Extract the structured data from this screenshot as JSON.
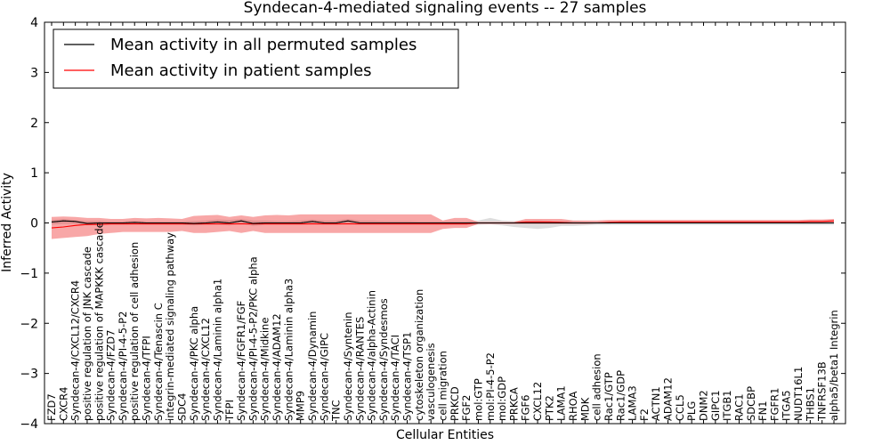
{
  "chart_data": {
    "type": "line",
    "title": "Syndecan-4-mediated signaling events -- 27 samples",
    "xlabel": "Cellular Entities",
    "ylabel": "Inferred Activity",
    "ylim": [
      -4,
      4
    ],
    "yticks": [
      -4,
      -3,
      -2,
      -1,
      0,
      1,
      2,
      3,
      4
    ],
    "ytick_labels": [
      "−4",
      "−3",
      "−2",
      "−1",
      "0",
      "1",
      "2",
      "3",
      "4"
    ],
    "grid": false,
    "legend_position": "top-left",
    "categories": [
      "FZD7",
      "CXCR4",
      "Syndecan-4/CXCL12/CXCR4",
      "positive regulation of JNK cascade",
      "positive regulation of MAPKKK cascade",
      "Syndecan-4/FZD7",
      "Syndecan-4/PI-4-5-P2",
      "positive regulation of cell adhesion",
      "Syndecan-4/TFPI",
      "Syndecan-4/Tenascin C",
      "integrin-mediated signaling pathway",
      "SDC4",
      "Syndecan-4/PKC alpha",
      "Syndecan-4/CXCL12",
      "Syndecan-4/Laminin alpha1",
      "TFPI",
      "Syndecan-4/FGFR1/FGF",
      "Syndecan-4/PI-4-5-P2/PKC alpha",
      "Syndecan-4/Midkine",
      "Syndecan-4/ADAM12",
      "Syndecan-4/Laminin alpha3",
      "MMP9",
      "Syndecan-4/Dynamin",
      "Syndecan-4/GIPC",
      "TNC",
      "Syndecan-4/Syntenin",
      "Syndecan-4/RANTES",
      "Syndecan-4/alpha-Actinin",
      "Syndecan-4/Syndesmos",
      "Syndecan-4/TACI",
      "Syndecan-4/TSP1",
      "cytoskeleton organization",
      "vasculogenesis",
      "cell migration",
      "PRKCD",
      "FGF2",
      "mol:GTP",
      "mol:PI-4-5-P2",
      "mol:GDP",
      "PRKCA",
      "FGF6",
      "CXCL12",
      "PTK2",
      "LAMA1",
      "RHOA",
      "MDK",
      "cell adhesion",
      "Rac1/GTP",
      "Rac1/GDP",
      "LAMA3",
      "F2",
      "ACTN1",
      "ADAM12",
      "CCL5",
      "PLG",
      "DNM2",
      "GIPC1",
      "ITGB1",
      "RAC1",
      "SDCBP",
      "FN1",
      "FGFR1",
      "ITGA5",
      "NUDT16L1",
      "THBS1",
      "TNFRSF13B",
      "alpha5/beta1 Integrin"
    ],
    "series": [
      {
        "name": "Mean activity in all permuted samples",
        "color": "#000000",
        "values": [
          0.02,
          0.04,
          0.03,
          -0.01,
          0.0,
          0.0,
          0.0,
          0.01,
          0.0,
          0.0,
          0.0,
          0.0,
          -0.01,
          0.0,
          0.02,
          0.0,
          0.04,
          -0.01,
          0.0,
          0.0,
          0.0,
          0.0,
          0.03,
          0.0,
          0.0,
          0.04,
          0.0,
          0.0,
          0.0,
          0.0,
          0.0,
          0.0,
          0.0,
          0.0,
          0.0,
          0.0,
          0.0,
          0.0,
          0.0,
          0.0,
          0.0,
          0.0,
          0.0,
          0.0,
          0.0,
          0.0,
          0.0,
          0.0,
          0.0,
          0.0,
          0.0,
          0.0,
          0.0,
          0.0,
          0.0,
          0.0,
          0.0,
          0.0,
          0.0,
          0.0,
          0.0,
          0.0,
          0.0,
          0.0,
          0.0,
          0.0,
          0.0
        ],
        "band_upper": [
          0.06,
          0.08,
          0.06,
          0.04,
          0.04,
          0.03,
          0.03,
          0.04,
          0.03,
          0.03,
          0.03,
          0.03,
          0.04,
          0.05,
          0.07,
          0.06,
          0.08,
          0.05,
          0.05,
          0.04,
          0.04,
          0.05,
          0.07,
          0.05,
          0.05,
          0.08,
          0.05,
          0.05,
          0.04,
          0.04,
          0.04,
          0.03,
          0.03,
          0.03,
          0.03,
          0.03,
          0.05,
          0.1,
          0.05,
          0.04,
          0.04,
          0.05,
          0.04,
          0.04,
          0.04,
          0.03,
          0.03,
          0.03,
          0.03,
          0.03,
          0.03,
          0.03,
          0.03,
          0.03,
          0.03,
          0.03,
          0.03,
          0.03,
          0.03,
          0.03,
          0.03,
          0.03,
          0.03,
          0.03,
          0.03,
          0.03,
          0.03
        ],
        "band_lower": [
          -0.03,
          -0.02,
          -0.02,
          -0.05,
          -0.04,
          -0.04,
          -0.04,
          -0.03,
          -0.04,
          -0.04,
          -0.04,
          -0.04,
          -0.05,
          -0.04,
          -0.03,
          -0.05,
          -0.01,
          -0.06,
          -0.04,
          -0.04,
          -0.04,
          -0.04,
          -0.02,
          -0.04,
          -0.04,
          -0.01,
          -0.04,
          -0.04,
          -0.04,
          -0.04,
          -0.04,
          -0.04,
          -0.04,
          -0.04,
          -0.04,
          -0.04,
          -0.04,
          -0.03,
          -0.05,
          -0.08,
          -0.1,
          -0.12,
          -0.1,
          -0.06,
          -0.06,
          -0.05,
          -0.04,
          -0.04,
          -0.04,
          -0.04,
          -0.04,
          -0.04,
          -0.04,
          -0.04,
          -0.04,
          -0.04,
          -0.04,
          -0.04,
          -0.04,
          -0.04,
          -0.04,
          -0.04,
          -0.04,
          -0.04,
          -0.04,
          -0.04,
          -0.04
        ]
      },
      {
        "name": "Mean activity in patient samples",
        "color": "#ff0000",
        "values": [
          -0.1,
          -0.08,
          -0.05,
          -0.03,
          -0.03,
          -0.02,
          -0.02,
          -0.02,
          -0.02,
          -0.02,
          -0.02,
          -0.02,
          -0.02,
          -0.02,
          -0.02,
          -0.02,
          -0.02,
          -0.02,
          -0.02,
          -0.02,
          -0.02,
          -0.02,
          -0.02,
          -0.02,
          -0.02,
          -0.02,
          -0.02,
          -0.02,
          -0.02,
          -0.02,
          -0.02,
          -0.02,
          -0.02,
          -0.02,
          -0.02,
          -0.02,
          0.0,
          0.0,
          0.0,
          0.0,
          0.02,
          0.02,
          0.02,
          0.01,
          0.0,
          0.0,
          0.0,
          0.01,
          0.02,
          0.02,
          0.02,
          0.02,
          0.02,
          0.02,
          0.02,
          0.02,
          0.02,
          0.02,
          0.02,
          0.02,
          0.02,
          0.02,
          0.02,
          0.02,
          0.03,
          0.03,
          0.04
        ],
        "band_upper": [
          0.12,
          0.13,
          0.12,
          0.1,
          0.1,
          0.08,
          0.08,
          0.1,
          0.09,
          0.1,
          0.09,
          0.08,
          0.14,
          0.15,
          0.16,
          0.12,
          0.15,
          0.12,
          0.15,
          0.16,
          0.15,
          0.17,
          0.17,
          0.17,
          0.17,
          0.17,
          0.17,
          0.17,
          0.17,
          0.17,
          0.17,
          0.17,
          0.17,
          0.05,
          0.1,
          0.1,
          0.02,
          0.02,
          0.02,
          0.02,
          0.08,
          0.08,
          0.08,
          0.08,
          0.05,
          0.05,
          0.05,
          0.06,
          0.06,
          0.06,
          0.06,
          0.06,
          0.06,
          0.06,
          0.06,
          0.06,
          0.06,
          0.06,
          0.06,
          0.06,
          0.06,
          0.06,
          0.06,
          0.06,
          0.07,
          0.07,
          0.08
        ],
        "band_lower": [
          -0.32,
          -0.3,
          -0.28,
          -0.26,
          -0.22,
          -0.2,
          -0.18,
          -0.18,
          -0.18,
          -0.18,
          -0.18,
          -0.16,
          -0.2,
          -0.2,
          -0.18,
          -0.16,
          -0.2,
          -0.16,
          -0.2,
          -0.2,
          -0.2,
          -0.2,
          -0.2,
          -0.2,
          -0.2,
          -0.2,
          -0.2,
          -0.2,
          -0.2,
          -0.2,
          -0.2,
          -0.2,
          -0.2,
          -0.12,
          -0.1,
          -0.1,
          -0.02,
          -0.02,
          -0.02,
          -0.02,
          -0.02,
          -0.02,
          -0.02,
          -0.02,
          -0.02,
          -0.02,
          -0.01,
          -0.01,
          0.0,
          0.0,
          0.0,
          0.0,
          0.0,
          0.0,
          0.0,
          0.0,
          0.0,
          0.0,
          0.0,
          0.0,
          0.0,
          0.0,
          0.0,
          0.0,
          0.0,
          0.0,
          0.0
        ]
      }
    ]
  }
}
